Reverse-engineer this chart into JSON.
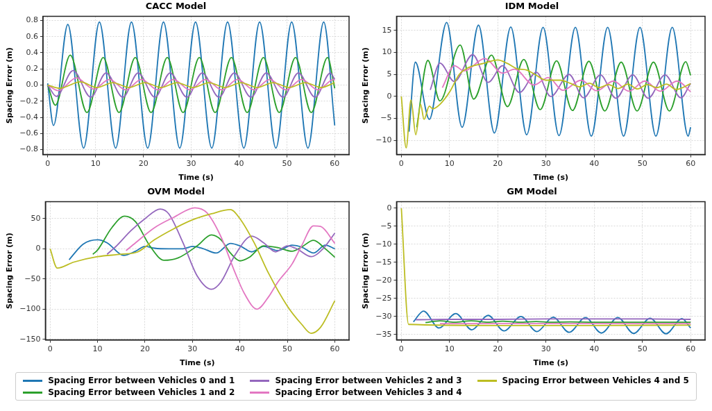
{
  "chart_data": [
    {
      "type": "line",
      "title": "CACC Model",
      "xlabel": "Time (s)",
      "ylabel": "Spacing Error (m)",
      "xlim": [
        -1,
        63
      ],
      "xticks": [
        0,
        10,
        20,
        30,
        40,
        50,
        60
      ],
      "ylim": [
        -0.86,
        0.85
      ],
      "yticks": [
        -0.8,
        -0.6,
        -0.4,
        -0.2,
        {
          "value": 0,
          "label": "0.0"
        },
        0.2,
        0.4,
        0.6,
        0.8
      ],
      "grid": true,
      "legend": "bottom",
      "marker": "none",
      "line_style": "solid",
      "series": [
        {
          "name": "Spacing Error between Vehicles 0 and 1",
          "color": "#1f77b4",
          "x": [
            0,
            1.2,
            4.2,
            7.5,
            10.8,
            14.2,
            17.5,
            20.9,
            24.2,
            27.6,
            30.9,
            34.3,
            37.6,
            41.0,
            44.3,
            47.7,
            51.0,
            54.4,
            57.7,
            60
          ],
          "values": [
            0.02,
            -0.5,
            0.75,
            -0.78,
            0.78,
            -0.78,
            0.78,
            -0.78,
            0.78,
            -0.78,
            0.78,
            -0.78,
            0.78,
            -0.78,
            0.78,
            -0.78,
            0.78,
            -0.78,
            0.78,
            -0.5
          ]
        },
        {
          "name": "Spacing Error between Vehicles 1 and 2",
          "color": "#2ca02c",
          "x": [
            0,
            1.6,
            4.7,
            8.2,
            11.6,
            14.9,
            18.3,
            21.6,
            25.0,
            28.3,
            31.7,
            35.0,
            38.4,
            41.7,
            45.1,
            48.4,
            51.8,
            55.1,
            58.5,
            60
          ],
          "values": [
            0,
            -0.25,
            0.37,
            -0.34,
            0.34,
            -0.34,
            0.34,
            -0.34,
            0.34,
            -0.34,
            0.34,
            -0.34,
            0.34,
            -0.34,
            0.34,
            -0.34,
            0.34,
            -0.34,
            0.34,
            -0.04
          ]
        },
        {
          "name": "Spacing Error between Vehicles 2 and 3",
          "color": "#9467bd",
          "x": [
            0,
            1.8,
            5.3,
            9.0,
            12.2,
            15.7,
            18.9,
            22.4,
            25.6,
            29.1,
            32.3,
            35.8,
            39.0,
            42.5,
            45.7,
            49.2,
            52.4,
            55.9,
            59.1,
            60
          ],
          "values": [
            0,
            -0.14,
            0.18,
            -0.15,
            0.15,
            -0.15,
            0.15,
            -0.15,
            0.15,
            -0.15,
            0.15,
            -0.15,
            0.15,
            -0.15,
            0.15,
            -0.15,
            0.15,
            -0.15,
            0.15,
            0.07
          ]
        },
        {
          "name": "Spacing Error between Vehicles 3 and 4",
          "color": "#e377c2",
          "x": [
            0,
            2.2,
            6.0,
            9.6,
            12.9,
            16.3,
            19.6,
            23.0,
            26.3,
            29.7,
            33.0,
            36.4,
            39.7,
            43.1,
            46.4,
            49.8,
            53.1,
            56.5,
            59.8,
            60
          ],
          "values": [
            0,
            -0.07,
            0.09,
            -0.05,
            0.07,
            -0.06,
            0.07,
            -0.06,
            0.07,
            -0.06,
            0.07,
            -0.06,
            0.07,
            -0.06,
            0.07,
            -0.06,
            0.07,
            -0.06,
            0.07,
            0.06
          ]
        },
        {
          "name": "Spacing Error between Vehicles 4 and 5",
          "color": "#bcbd22",
          "x": [
            0,
            2.5,
            6.8,
            10.3,
            13.6,
            17.0,
            20.3,
            23.7,
            27.0,
            30.4,
            33.7,
            37.1,
            40.4,
            43.8,
            47.1,
            50.5,
            53.8,
            57.2,
            60
          ],
          "values": [
            0,
            -0.04,
            0.04,
            -0.03,
            0.03,
            -0.03,
            0.03,
            -0.03,
            0.03,
            -0.03,
            0.03,
            -0.03,
            0.03,
            -0.03,
            0.03,
            -0.03,
            0.03,
            -0.03,
            0.03
          ]
        }
      ]
    },
    {
      "type": "line",
      "title": "IDM Model",
      "xlabel": "Time (s)",
      "ylabel": "Spacing Error (m)",
      "xlim": [
        -1,
        63
      ],
      "xticks": [
        0,
        10,
        20,
        30,
        40,
        50,
        60
      ],
      "ylim": [
        -13.2,
        18.2
      ],
      "yticks": [
        -10,
        -5,
        0,
        5,
        10,
        15
      ],
      "grid": true,
      "marker": "none",
      "line_style": "solid",
      "series": [
        {
          "color": "#1f77b4",
          "x": [
            1.6,
            2.9,
            5.8,
            9.4,
            12.6,
            16.0,
            19.3,
            22.7,
            26.0,
            29.4,
            32.7,
            36.1,
            39.4,
            42.8,
            46.1,
            49.5,
            52.8,
            56.2,
            59.5,
            60
          ],
          "values": [
            -8,
            7.8,
            -5.2,
            16.8,
            -7.0,
            16.2,
            -8.3,
            15.8,
            -8.7,
            15.7,
            -8.9,
            15.7,
            -9.0,
            15.7,
            -9.0,
            15.7,
            -9.0,
            15.7,
            -9.0,
            -7
          ]
        },
        {
          "color": "#2ca02c",
          "x": [
            3.2,
            5.5,
            8.0,
            12.2,
            15.0,
            18.7,
            22.0,
            25.4,
            28.8,
            32.2,
            35.5,
            38.9,
            42.2,
            45.6,
            48.9,
            52.3,
            55.6,
            59.0,
            60
          ],
          "values": [
            -7,
            8.2,
            -1.0,
            11.7,
            -0.6,
            9.4,
            -2.3,
            8.4,
            -3.0,
            8.1,
            -3.2,
            8.0,
            -3.3,
            7.8,
            -3.3,
            7.8,
            -3.3,
            7.9,
            4.8
          ]
        },
        {
          "color": "#9467bd",
          "x": [
            6.0,
            8.0,
            11.0,
            14.8,
            18.0,
            21.0,
            24.5,
            28.0,
            31.0,
            34.8,
            37.8,
            41.3,
            44.5,
            48.0,
            51.2,
            54.7,
            58.0,
            60
          ],
          "values": [
            1.5,
            7.6,
            3.4,
            9.5,
            3.2,
            7.0,
            0.9,
            5.5,
            0,
            5.0,
            -0.3,
            4.9,
            -0.4,
            4.9,
            -0.4,
            4.9,
            -0.3,
            3
          ]
        },
        {
          "color": "#e377c2",
          "x": [
            8.5,
            11.0,
            13.0,
            17.3,
            21.0,
            23.5,
            27.5,
            30.5,
            33.5,
            37.3,
            40.5,
            44.0,
            47.2,
            50.5,
            53.7,
            57.2,
            60
          ],
          "values": [
            2,
            7.0,
            5.8,
            8.6,
            5.3,
            6.2,
            2.6,
            4.3,
            1.4,
            3.7,
            1.3,
            3.5,
            1.2,
            3.5,
            1.2,
            3.5,
            1.1
          ]
        },
        {
          "color": "#bcbd22",
          "x": [
            0,
            1.0,
            2.0,
            3.0,
            4.0,
            4.7,
            5.8,
            6.5,
            8,
            10,
            12,
            14,
            17,
            20,
            22,
            24,
            26,
            28,
            30,
            33,
            35,
            37,
            39,
            41,
            43,
            45,
            47,
            49,
            51,
            53,
            55,
            57,
            60
          ],
          "values": [
            0,
            -11.7,
            -0.8,
            -8.7,
            -1.8,
            -5.2,
            -2.2,
            -2.8,
            -1.8,
            1,
            5,
            6.6,
            7.5,
            8.3,
            7.5,
            6.3,
            6,
            4.8,
            3.7,
            3.7,
            3.0,
            2.2,
            3.0,
            2.0,
            2.7,
            1.8,
            2.8,
            1.7,
            2.7,
            2.0,
            2.8,
            1.6,
            2.9
          ]
        }
      ]
    },
    {
      "type": "line",
      "title": "OVM Model",
      "xlabel": "Time (s)",
      "ylabel": "Spacing Error (m)",
      "xlim": [
        -1,
        63
      ],
      "xticks": [
        0,
        10,
        20,
        30,
        40,
        50,
        60
      ],
      "ylim": [
        -151,
        78
      ],
      "yticks": [
        -150,
        -100,
        -50,
        0,
        50
      ],
      "grid": true,
      "marker": "none",
      "line_style": "solid",
      "series": [
        {
          "color": "#1f77b4",
          "x": [
            4,
            7,
            10,
            12,
            15.5,
            18,
            20,
            22,
            25,
            28,
            30,
            32,
            35,
            38,
            40,
            42.5,
            45,
            48,
            51,
            53,
            55.5,
            58,
            60
          ],
          "values": [
            -18,
            8,
            15,
            10,
            -11,
            -4,
            4,
            1,
            0,
            0,
            4,
            1,
            -7,
            9,
            5,
            -5,
            4,
            -3,
            6,
            3,
            -7,
            6,
            0
          ]
        },
        {
          "color": "#2ca02c",
          "x": [
            9,
            10,
            13,
            15.7,
            18,
            21,
            24,
            27,
            31,
            34,
            36,
            38,
            40,
            42,
            45,
            48,
            51,
            53,
            55.5,
            58,
            60
          ],
          "values": [
            -9,
            -2,
            35,
            54,
            45,
            5,
            -19,
            -15,
            5,
            23,
            15,
            -7,
            -20,
            -14,
            5,
            2,
            -4,
            3,
            14,
            0,
            -14
          ]
        },
        {
          "color": "#9467bd",
          "x": [
            12,
            14,
            17,
            20,
            23.2,
            25,
            28,
            31,
            34,
            36,
            39,
            42.5,
            45,
            47.5,
            50,
            52,
            55,
            57.5,
            60
          ],
          "values": [
            -9,
            5,
            30,
            50,
            66,
            58,
            10,
            -45,
            -67,
            -55,
            -10,
            21,
            10,
            -5,
            5,
            0,
            -13,
            0,
            26
          ]
        },
        {
          "color": "#e377c2",
          "x": [
            16,
            18,
            22,
            26,
            30.5,
            33,
            36,
            39,
            41,
            43.6,
            46,
            48,
            51,
            53,
            55.5,
            57,
            60
          ],
          "values": [
            -3,
            10,
            35,
            52,
            68,
            60,
            20,
            -40,
            -75,
            -100,
            -80,
            -55,
            -25,
            5,
            38,
            37,
            9
          ]
        },
        {
          "color": "#bcbd22",
          "x": [
            0,
            1.5,
            5,
            10,
            15,
            18.5,
            22,
            26,
            30,
            34,
            38,
            40,
            43,
            46,
            50,
            53,
            55,
            57,
            60
          ],
          "values": [
            0,
            -32,
            -22,
            -13,
            -9,
            -5,
            15,
            33,
            48,
            58,
            65,
            50,
            10,
            -40,
            -95,
            -125,
            -140,
            -130,
            -86
          ]
        }
      ]
    },
    {
      "type": "line",
      "title": "GM Model",
      "xlabel": "Time (s)",
      "ylabel": "Spacing Error (m)",
      "xlim": [
        -1,
        63
      ],
      "xticks": [
        0,
        10,
        20,
        30,
        40,
        50,
        60
      ],
      "ylim": [
        -36.5,
        1.8
      ],
      "yticks": [
        -35,
        -30,
        -25,
        -20,
        -15,
        -10,
        -5,
        0
      ],
      "grid": true,
      "marker": "none",
      "line_style": "solid",
      "series": [
        {
          "color": "#1f77b4",
          "x": [
            2.5,
            4.6,
            7.8,
            11.3,
            14.6,
            18,
            21.3,
            24.8,
            28.1,
            31.5,
            34.8,
            38.2,
            41.5,
            44.9,
            48.2,
            51.6,
            54.9,
            58.2,
            60
          ],
          "values": [
            -31.5,
            -28.5,
            -33.2,
            -29.2,
            -33.7,
            -29.7,
            -34,
            -30,
            -34.2,
            -30.2,
            -34.4,
            -30.3,
            -34.6,
            -30.3,
            -34.7,
            -30.5,
            -34.8,
            -30.6,
            -33.2
          ]
        },
        {
          "color": "#2ca02c",
          "x": [
            5,
            8,
            11,
            14.5,
            18,
            21,
            24.5,
            28,
            31,
            35,
            40,
            45,
            50,
            55,
            60
          ],
          "values": [
            -31.7,
            -31.2,
            -31.6,
            -31.2,
            -31.6,
            -31.3,
            -31.6,
            -31.4,
            -31.6,
            -31.5,
            -31.6,
            -31.6,
            -31.6,
            -31.6,
            -31.6
          ]
        },
        {
          "color": "#9467bd",
          "x": [
            3,
            10,
            20,
            30,
            40,
            50,
            60
          ],
          "values": [
            -30.9,
            -30.8,
            -30.8,
            -30.7,
            -30.7,
            -30.7,
            -30.8
          ]
        },
        {
          "color": "#e377c2",
          "x": [
            8,
            20,
            40,
            60
          ],
          "values": [
            -32.0,
            -32.0,
            -32.0,
            -32.0
          ]
        },
        {
          "color": "#bcbd22",
          "x": [
            0,
            1.5,
            20,
            40,
            60
          ],
          "values": [
            0,
            -32.2,
            -32.5,
            -32.5,
            -32.4
          ]
        }
      ]
    }
  ]
}
